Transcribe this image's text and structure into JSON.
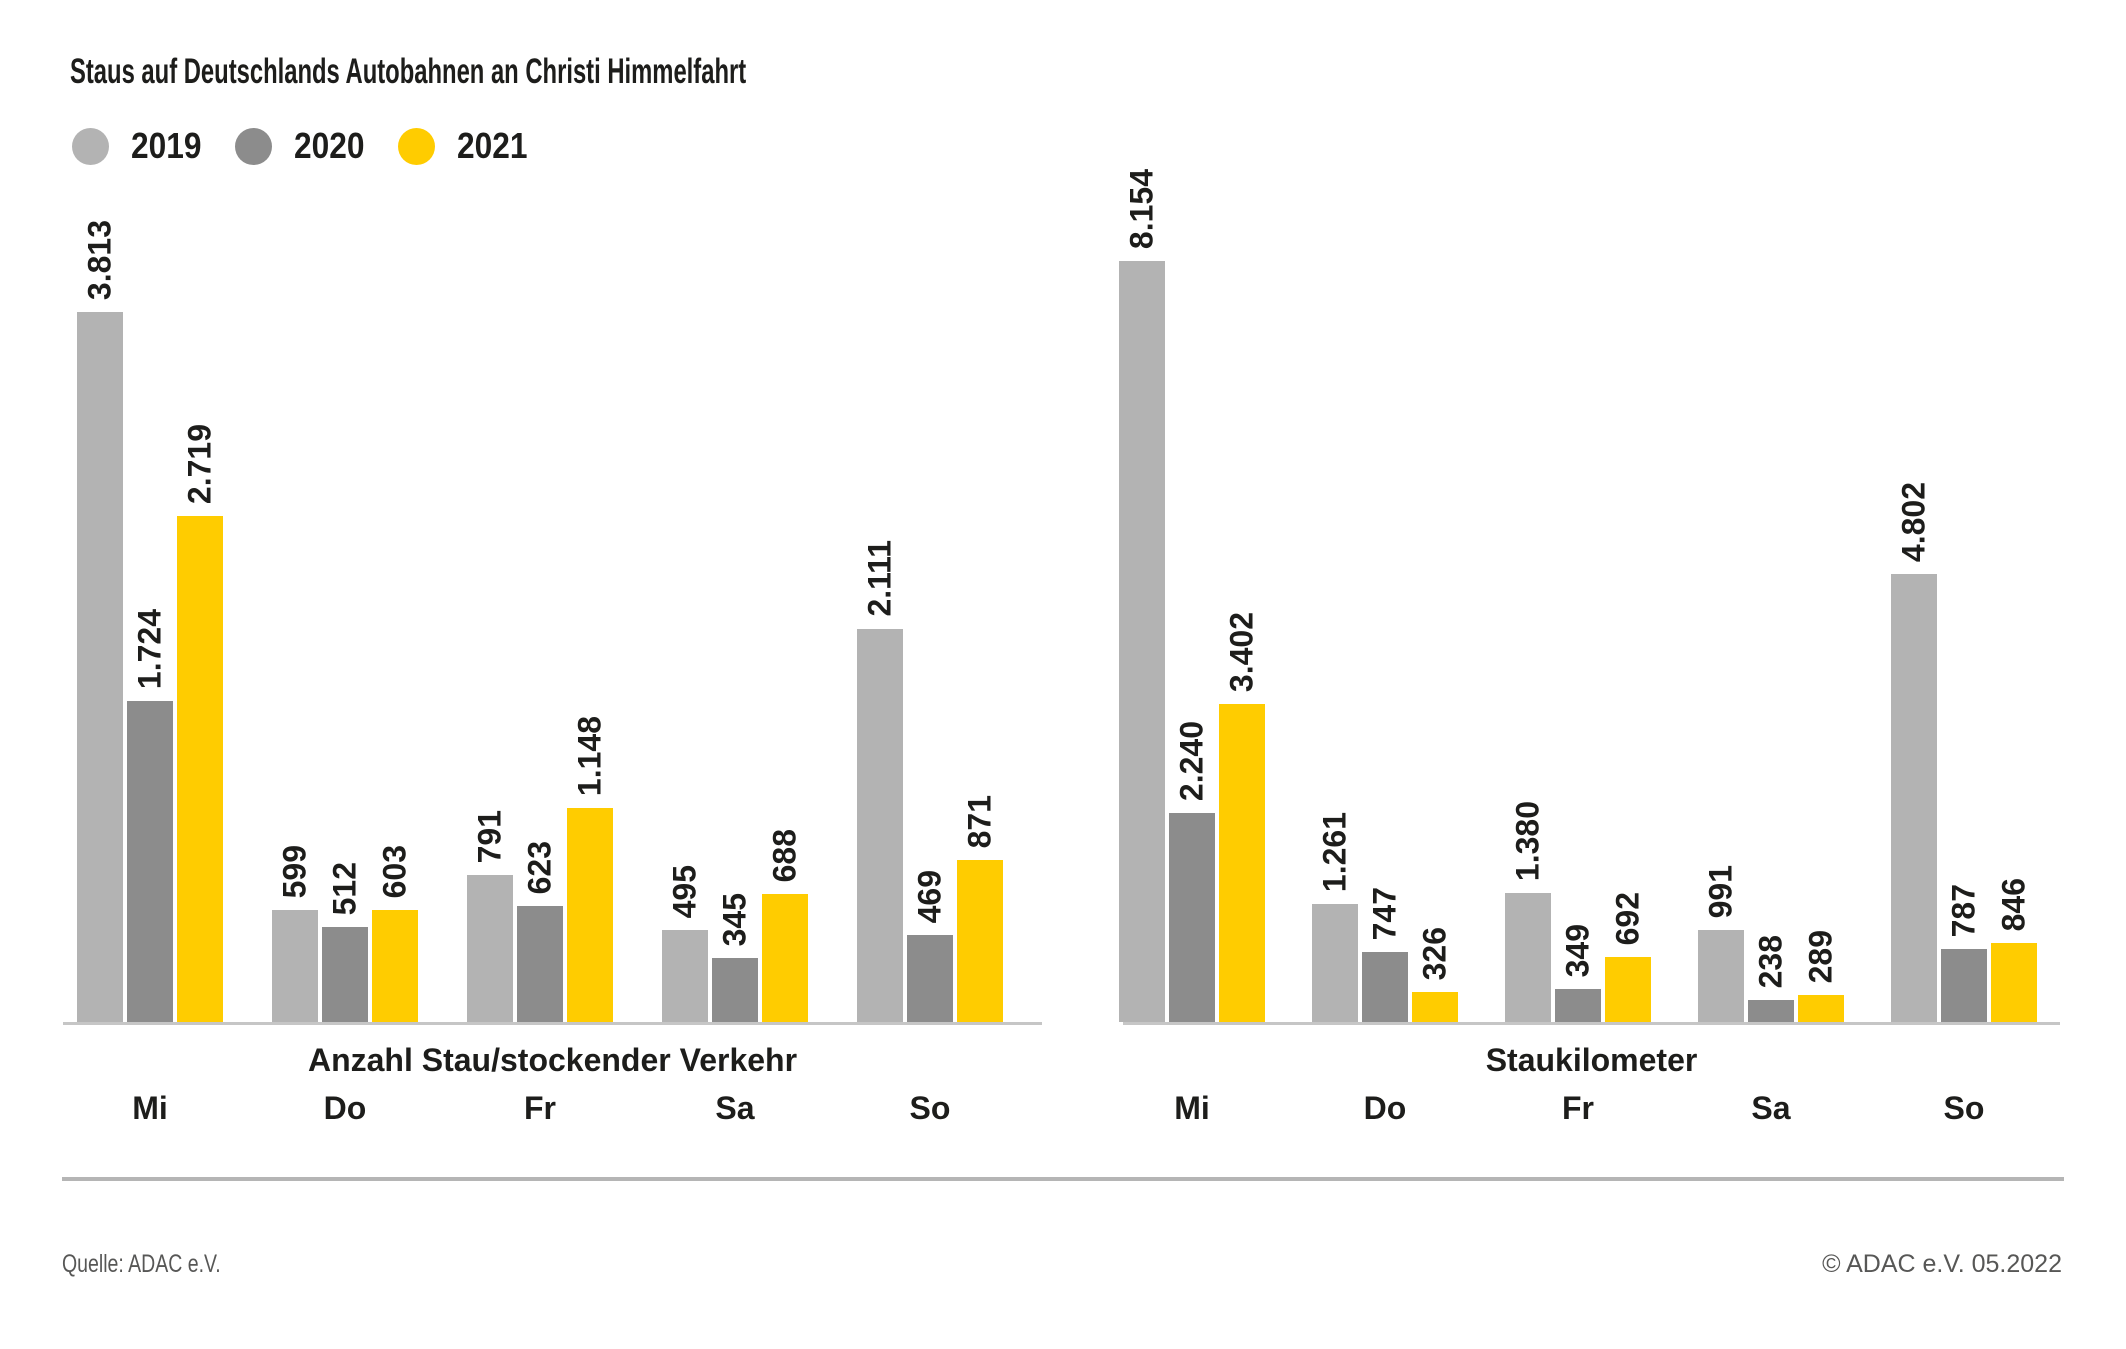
{
  "header": {
    "title": "Staus auf Deutschlands Autobahnen an Christi Himmelfahrt"
  },
  "legend": {
    "items": [
      {
        "label": "2019",
        "color": "#b3b3b3"
      },
      {
        "label": "2020",
        "color": "#8c8c8c"
      },
      {
        "label": "2021",
        "color": "#ffcc00"
      }
    ]
  },
  "chart_data": [
    {
      "type": "bar",
      "title": "Anzahl Stau/stockender Verkehr",
      "categories": [
        "Mi",
        "Do",
        "Fr",
        "Sa",
        "So"
      ],
      "series": [
        {
          "name": "2019",
          "color": "#b3b3b3",
          "values": [
            3813,
            599,
            791,
            495,
            2111
          ],
          "value_labels": [
            "3.813",
            "599",
            "791",
            "495",
            "2.111"
          ]
        },
        {
          "name": "2020",
          "color": "#8c8c8c",
          "values": [
            1724,
            512,
            623,
            345,
            469
          ],
          "value_labels": [
            "1.724",
            "512",
            "623",
            "345",
            "469"
          ]
        },
        {
          "name": "2021",
          "color": "#ffcc00",
          "values": [
            2719,
            603,
            1148,
            688,
            871
          ],
          "value_labels": [
            "2.719",
            "603",
            "1.148",
            "688",
            "871"
          ]
        }
      ],
      "xlabel": "Anzahl Stau/stockender Verkehr",
      "ylabel": "",
      "ylim": [
        0,
        3813
      ],
      "grid": false,
      "legend_position": "top-left"
    },
    {
      "type": "bar",
      "title": "Staukilometer",
      "categories": [
        "Mi",
        "Do",
        "Fr",
        "Sa",
        "So"
      ],
      "series": [
        {
          "name": "2019",
          "color": "#b3b3b3",
          "values": [
            8154,
            1261,
            1380,
            991,
            4802
          ],
          "value_labels": [
            "8.154",
            "1.261",
            "1.380",
            "991",
            "4.802"
          ]
        },
        {
          "name": "2020",
          "color": "#8c8c8c",
          "values": [
            2240,
            747,
            349,
            238,
            787
          ],
          "value_labels": [
            "2.240",
            "747",
            "349",
            "238",
            "787"
          ]
        },
        {
          "name": "2021",
          "color": "#ffcc00",
          "values": [
            3402,
            326,
            692,
            289,
            846
          ],
          "value_labels": [
            "3.402",
            "326",
            "692",
            "289",
            "846"
          ]
        }
      ],
      "xlabel": "Staukilometer",
      "ylabel": "",
      "ylim": [
        0,
        8154
      ],
      "grid": false,
      "legend_position": "top-left"
    }
  ],
  "footer": {
    "source": "Quelle: ADAC e.V.",
    "copyright": "© ADAC e.V. 05.2022"
  }
}
